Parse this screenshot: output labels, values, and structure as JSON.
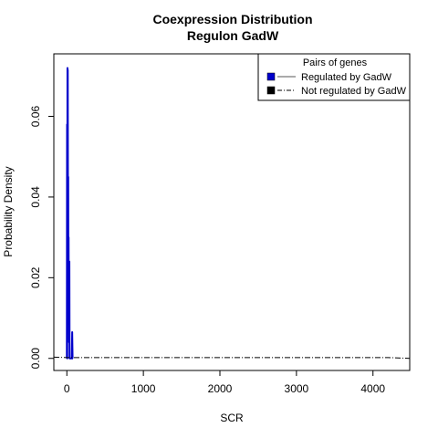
{
  "chart_data": {
    "type": "line",
    "title": "Coexpression Distribution",
    "subtitle": "Regulon GadW",
    "xlabel": "SCR",
    "ylabel": "Probability Density",
    "xlim": [
      -170,
      4480
    ],
    "ylim": [
      -0.003,
      0.0755
    ],
    "xticks": [
      0,
      1000,
      2000,
      3000,
      4000
    ],
    "xtick_labels": [
      "0",
      "1000",
      "2000",
      "3000",
      "4000"
    ],
    "yticks": [
      0.0,
      0.02,
      0.04,
      0.06
    ],
    "ytick_labels": [
      "0.00",
      "0.02",
      "0.04",
      "0.06"
    ],
    "grid": false,
    "legend": {
      "title": "Pairs of genes",
      "placement": "top-right",
      "entries": [
        "Regulated by GadW",
        "Not regulated by GadW"
      ]
    },
    "series": [
      {
        "name": "Regulated by GadW",
        "color": "#0000cc",
        "style": "solid",
        "x": [
          0,
          3,
          5,
          8,
          10,
          12,
          15,
          18,
          20,
          23,
          25,
          28,
          30,
          33,
          36,
          40,
          45,
          50,
          55,
          60,
          65,
          70,
          75,
          80
        ],
        "y": [
          0.0,
          0.058,
          0.0,
          0.072,
          0.04,
          0.0715,
          0.03,
          0.045,
          0.009,
          0.03,
          0.012,
          0.018,
          0.004,
          0.024,
          0.0,
          0.0,
          0.0,
          0.0,
          0.0,
          0.0,
          0.0,
          0.0065,
          0.0,
          0.0
        ]
      },
      {
        "name": "Not regulated by GadW",
        "color": "#000000",
        "style": "dashdot",
        "x": [
          -170,
          0,
          500,
          1000,
          1500,
          2000,
          2500,
          3000,
          3500,
          4000,
          4200,
          4480
        ],
        "y": [
          0.0003,
          0.0002,
          0.0002,
          0.0002,
          0.0002,
          0.0002,
          0.0002,
          0.0002,
          0.0002,
          0.0002,
          0.0002,
          0.0
        ]
      }
    ]
  }
}
